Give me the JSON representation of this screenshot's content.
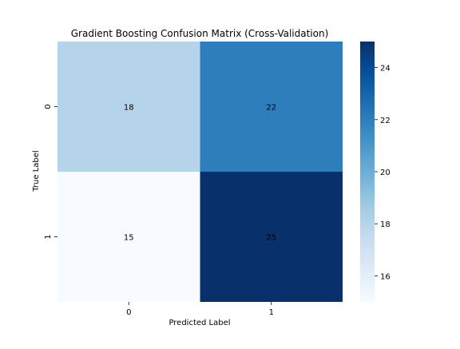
{
  "chart_data": {
    "type": "heatmap",
    "title": "Gradient Boosting Confusion Matrix (Cross-Validation)",
    "xlabel": "Predicted Label",
    "ylabel": "True Label",
    "x_categories": [
      "0",
      "1"
    ],
    "y_categories": [
      "0",
      "1"
    ],
    "values": [
      [
        18,
        22
      ],
      [
        15,
        25
      ]
    ],
    "colormap": "Blues",
    "colorbar": {
      "min": 15,
      "max": 25,
      "ticks": [
        "16",
        "18",
        "20",
        "22",
        "24"
      ]
    },
    "grid": false
  },
  "colors": {
    "low": "#f7fbff",
    "high": "#08306b"
  }
}
